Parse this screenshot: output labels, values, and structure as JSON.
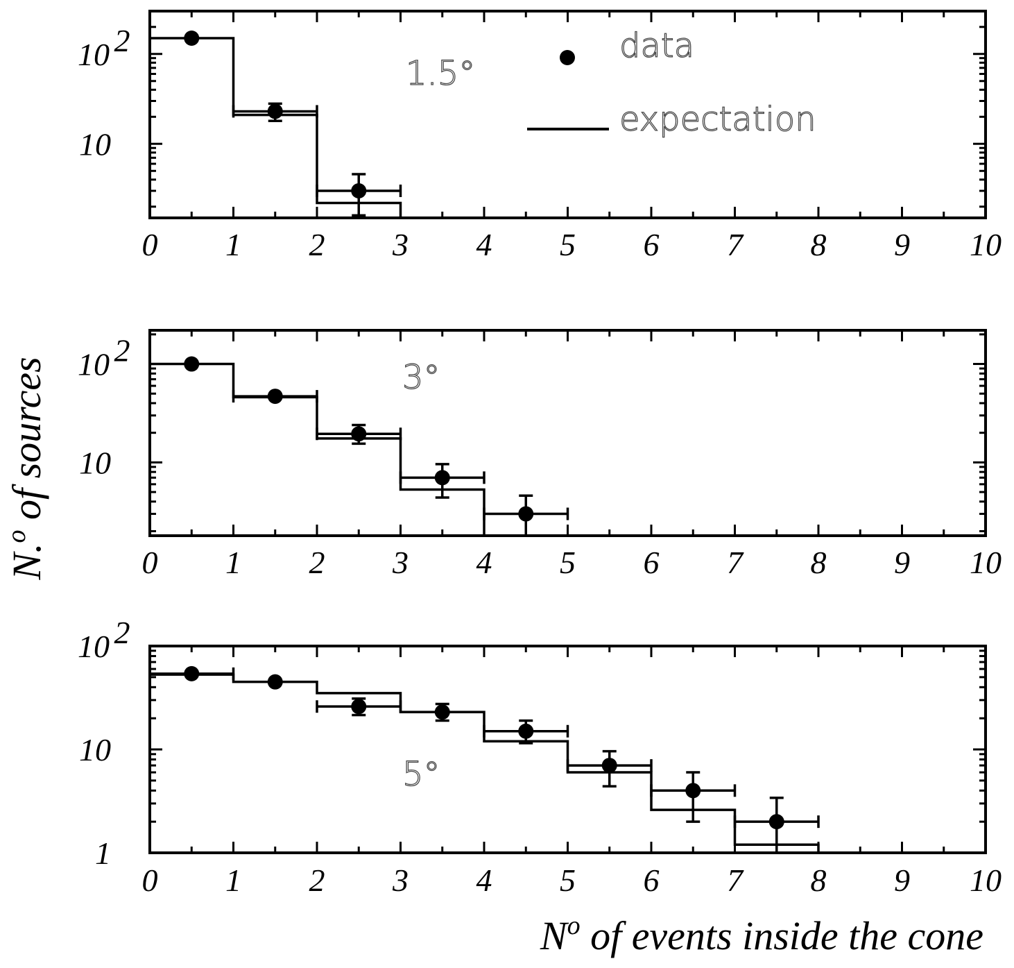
{
  "chart_data": [
    {
      "type": "step",
      "annotation": "1.5°",
      "xlabel": "",
      "xlim": [
        0,
        10
      ],
      "ylim": [
        1.5,
        300
      ],
      "yscale": "log",
      "x_ticks": [
        "0",
        "1",
        "2",
        "3",
        "4",
        "5",
        "6",
        "7",
        "8",
        "9",
        "10"
      ],
      "y_ticks": [
        {
          "value": 10,
          "label": "10"
        },
        {
          "value": 100,
          "label": "10",
          "sup": "2"
        }
      ],
      "legend": {
        "placement": "top-right",
        "data_label": "data",
        "expectation_label": "expectation"
      },
      "series": [
        {
          "name": "data",
          "kind": "points",
          "x": [
            0.5,
            1.5,
            2.5
          ],
          "y": [
            150,
            23,
            3
          ],
          "yerr_low": [
            0,
            18,
            1.6
          ],
          "yerr_high": [
            0,
            28,
            4.6
          ],
          "xerr": [
            0,
            0.5,
            0.5
          ]
        },
        {
          "name": "expectation",
          "kind": "step",
          "bins": [
            [
              0,
              1
            ],
            [
              1,
              2
            ],
            [
              2,
              3
            ]
          ],
          "values": [
            150,
            21,
            2.2
          ]
        }
      ]
    },
    {
      "type": "step",
      "annotation": "3°",
      "xlabel": "",
      "xlim": [
        0,
        10
      ],
      "ylim": [
        1.8,
        220
      ],
      "yscale": "log",
      "x_ticks": [
        "0",
        "1",
        "2",
        "3",
        "4",
        "5",
        "6",
        "7",
        "8",
        "9",
        "10"
      ],
      "y_ticks": [
        {
          "value": 10,
          "label": "10"
        },
        {
          "value": 100,
          "label": "10",
          "sup": "2"
        }
      ],
      "series": [
        {
          "name": "data",
          "kind": "points",
          "x": [
            0.5,
            1.5,
            2.5,
            3.5,
            4.5
          ],
          "y": [
            100,
            47,
            19.5,
            7,
            3
          ],
          "yerr_low": [
            0,
            0,
            15.5,
            4.4,
            1.6
          ],
          "yerr_high": [
            0,
            0,
            24,
            9.6,
            4.6
          ],
          "xerr": [
            0,
            0.5,
            0.5,
            0.5,
            0.5
          ]
        },
        {
          "name": "expectation",
          "kind": "step",
          "bins": [
            [
              0,
              1
            ],
            [
              1,
              2
            ],
            [
              2,
              3
            ],
            [
              3,
              4
            ],
            [
              4,
              5
            ]
          ],
          "values": [
            100,
            46,
            17.5,
            5.3,
            1.8
          ]
        }
      ]
    },
    {
      "type": "step",
      "annotation": "5°",
      "xlabel": "N° of events inside the cone",
      "xlim": [
        0,
        10
      ],
      "ylim": [
        1,
        100
      ],
      "yscale": "log",
      "x_ticks": [
        "0",
        "1",
        "2",
        "3",
        "4",
        "5",
        "6",
        "7",
        "8",
        "9",
        "10"
      ],
      "y_ticks": [
        {
          "value": 1,
          "label": "1"
        },
        {
          "value": 10,
          "label": "10"
        },
        {
          "value": 100,
          "label": "10",
          "sup": "2"
        }
      ],
      "series": [
        {
          "name": "data",
          "kind": "points",
          "x": [
            0.5,
            1.5,
            2.5,
            3.5,
            4.5,
            5.5,
            6.5,
            7.5
          ],
          "y": [
            54,
            45,
            26,
            23,
            15,
            7,
            4,
            2
          ],
          "yerr_low": [
            0,
            0,
            21.5,
            19,
            11.5,
            4.4,
            2,
            0.9
          ],
          "yerr_high": [
            0,
            0,
            31,
            27.5,
            19,
            9.6,
            6,
            3.4
          ],
          "xerr": [
            0.5,
            0,
            0.5,
            0,
            0.5,
            0.5,
            0.5,
            0.5
          ]
        },
        {
          "name": "expectation",
          "kind": "step",
          "bins": [
            [
              0,
              1
            ],
            [
              1,
              2
            ],
            [
              2,
              3
            ],
            [
              3,
              4
            ],
            [
              4,
              5
            ],
            [
              5,
              6
            ],
            [
              6,
              7
            ],
            [
              7,
              8
            ]
          ],
          "values": [
            53,
            45,
            35,
            23,
            12,
            6,
            2.6,
            1.2
          ]
        }
      ]
    }
  ],
  "ylabel": {
    "base": "N.",
    "sup": "o",
    "rest": " of sources"
  },
  "xlabel_parts": {
    "base": "N",
    "sup": "o",
    "rest": " of events inside the cone"
  }
}
